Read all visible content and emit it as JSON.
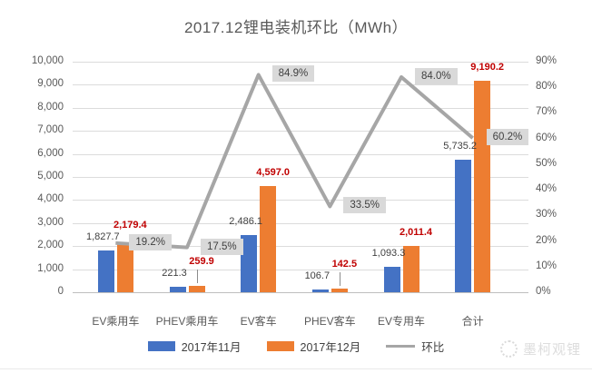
{
  "title": "2017.12锂电装机环比（MWh）",
  "watermark": {
    "text": "墨柯观锂"
  },
  "chart_data": {
    "type": "bar",
    "subtype": "grouped-bar-with-line-combo",
    "title": "2017.12锂电装机环比（MWh）",
    "categories": [
      "EV乘用车",
      "PHEV乘用车",
      "EV客车",
      "PHEV客车",
      "EV专用车",
      "合计"
    ],
    "series": [
      {
        "name": "2017年11月",
        "type": "bar",
        "color": "#4472C4",
        "label_color": "#3f3f3f",
        "values": [
          1827.7,
          221.3,
          2486.1,
          106.7,
          1093.3,
          5735.2
        ],
        "value_labels": [
          "1,827.7",
          "221.3",
          "2,486.1",
          "106.7",
          "1,093.3",
          "5,735.2"
        ]
      },
      {
        "name": "2017年12月",
        "type": "bar",
        "color": "#ED7D31",
        "label_color": "#C00000",
        "values": [
          2179.4,
          259.9,
          4597.0,
          142.5,
          2011.4,
          9190.2
        ],
        "value_labels": [
          "2,179.4",
          "259.9",
          "4,597.0",
          "142.5",
          "2,011.4",
          "9,190.2"
        ]
      },
      {
        "name": "环比",
        "type": "line",
        "axis": "right",
        "color": "#A6A6A6",
        "label_bg": "#D9D9D9",
        "label_color": "#404040",
        "values": [
          19.2,
          17.5,
          84.9,
          33.5,
          84.0,
          60.2
        ],
        "value_labels": [
          "19.2%",
          "17.5%",
          "84.9%",
          "33.5%",
          "84.0%",
          "60.2%"
        ]
      }
    ],
    "left_axis": {
      "min": 0,
      "max": 10000,
      "step": 1000,
      "tick_labels": [
        "0",
        "1,000",
        "2,000",
        "3,000",
        "4,000",
        "5,000",
        "6,000",
        "7,000",
        "8,000",
        "9,000",
        "10,000"
      ]
    },
    "right_axis": {
      "min": 0,
      "max": 90,
      "step": 10,
      "tick_labels": [
        "0%",
        "10%",
        "20%",
        "30%",
        "40%",
        "50%",
        "60%",
        "70%",
        "80%",
        "90%"
      ]
    },
    "grid": true,
    "legend_position": "bottom"
  }
}
